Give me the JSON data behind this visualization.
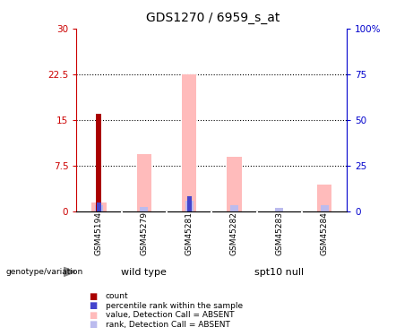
{
  "title": "GDS1270 / 6959_s_at",
  "samples": [
    "GSM45194",
    "GSM45279",
    "GSM45281",
    "GSM45282",
    "GSM45283",
    "GSM45284"
  ],
  "count_values": [
    16.0,
    0,
    0,
    0,
    0,
    0
  ],
  "rank_values": [
    1.5,
    0,
    2.5,
    0,
    0,
    0
  ],
  "absent_value_values": [
    1.5,
    9.5,
    22.5,
    9.0,
    0,
    4.5
  ],
  "absent_rank_values": [
    1.0,
    0.7,
    1.8,
    1.0,
    0.6,
    1.0
  ],
  "ylim_left": [
    0,
    30
  ],
  "ylim_right": [
    0,
    100
  ],
  "yticks_left": [
    0,
    7.5,
    15,
    22.5,
    30
  ],
  "ytick_labels_left": [
    "0",
    "7.5",
    "15",
    "22.5",
    "30"
  ],
  "yticks_right": [
    0,
    25,
    50,
    75,
    100
  ],
  "ytick_labels_right": [
    "0",
    "25",
    "50",
    "75",
    "100%"
  ],
  "left_axis_color": "#cc0000",
  "right_axis_color": "#0000cc",
  "color_count": "#aa0000",
  "color_rank": "#4444cc",
  "color_absent_value": "#ffbbbb",
  "color_absent_rank": "#bbbbee",
  "background_color": "#ffffff",
  "plot_bg_color": "#ffffff",
  "sample_bg_color": "#cccccc",
  "group_bg_color": "#55ee55",
  "legend_items": [
    "count",
    "percentile rank within the sample",
    "value, Detection Call = ABSENT",
    "rank, Detection Call = ABSENT"
  ],
  "legend_colors": [
    "#aa0000",
    "#4444cc",
    "#ffbbbb",
    "#bbbbee"
  ],
  "wild_type_label": "wild type",
  "spt10_null_label": "spt10 null",
  "genotype_label": "genotype/variation"
}
